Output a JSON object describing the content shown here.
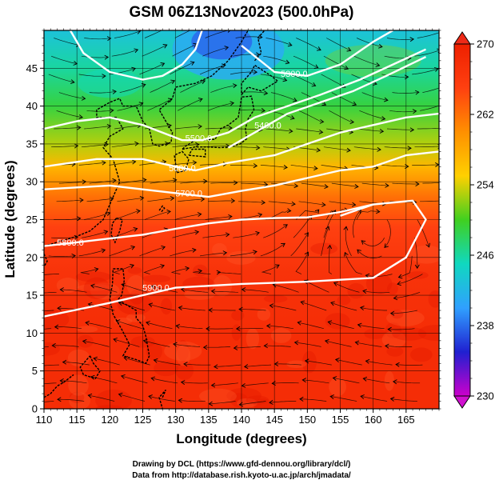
{
  "chart_data": {
    "type": "heatmap",
    "title": "GSM 06Z13Nov2023 (500.0hPa)",
    "xlabel": "Longitude (degrees)",
    "ylabel": "Latitude  (degrees)",
    "xlim": [
      110,
      170
    ],
    "ylim": [
      0,
      50
    ],
    "x_ticks": [
      110,
      115,
      120,
      125,
      130,
      135,
      140,
      145,
      150,
      155,
      160,
      165
    ],
    "y_ticks": [
      0,
      5,
      10,
      15,
      20,
      25,
      30,
      35,
      40,
      45
    ],
    "grid": true,
    "colorbar": {
      "min": 230,
      "max": 270,
      "ticks": [
        230,
        238,
        246,
        254,
        262,
        270
      ],
      "position": "right"
    },
    "colors": {
      "stops": [
        "#cc00cc",
        "#2020d0",
        "#30a0ff",
        "#10d8c0",
        "#40d020",
        "#ffd000",
        "#ff9000",
        "#ff4010",
        "#ee2000"
      ],
      "contour_line": "#ffffff",
      "streamline": "#000000"
    },
    "temperature_bands": [
      {
        "lat": 50,
        "value": 243
      },
      {
        "lat": 45,
        "value": 246
      },
      {
        "lat": 40,
        "value": 249
      },
      {
        "lat": 35,
        "value": 253
      },
      {
        "lat": 32,
        "value": 257
      },
      {
        "lat": 28,
        "value": 262
      },
      {
        "lat": 24,
        "value": 265
      },
      {
        "lat": 18,
        "value": 267
      },
      {
        "lat": 10,
        "value": 268
      },
      {
        "lat": 0,
        "value": 268
      }
    ],
    "height_contours": [
      {
        "label": "5900.0",
        "points": [
          [
            110,
            12.2
          ],
          [
            120,
            14.0
          ],
          [
            130,
            16.0
          ],
          [
            140,
            16.5
          ],
          [
            150,
            16.8
          ],
          [
            160,
            17.3
          ],
          [
            165,
            20.0
          ],
          [
            168,
            25.0
          ],
          [
            166,
            27.5
          ],
          [
            160,
            27.0
          ],
          [
            155,
            25.5
          ]
        ],
        "label_at": [
          127,
          16
        ]
      },
      {
        "label": "5800.0",
        "points": [
          [
            110,
            21.5
          ],
          [
            115,
            22.0
          ],
          [
            120,
            22.5
          ],
          [
            125,
            23.0
          ],
          [
            130,
            23.8
          ],
          [
            135,
            24.5
          ],
          [
            140,
            25.0
          ],
          [
            145,
            25.2
          ],
          [
            150,
            25.3
          ],
          [
            155,
            26.0
          ],
          [
            160,
            27.0
          ]
        ],
        "label_at": [
          114,
          22
        ]
      },
      {
        "label": "5700.0",
        "points": [
          [
            110,
            29.0
          ],
          [
            120,
            29.5
          ],
          [
            125,
            29.0
          ],
          [
            130,
            28.5
          ],
          [
            135,
            28.0
          ],
          [
            140,
            28.8
          ],
          [
            145,
            29.5
          ],
          [
            150,
            30.5
          ],
          [
            155,
            31.5
          ],
          [
            160,
            32.0
          ],
          [
            165,
            33.5
          ],
          [
            170,
            34.0
          ]
        ],
        "label_at": [
          132,
          28.5
        ]
      },
      {
        "label": "5600.0",
        "points": [
          [
            110,
            32.0
          ],
          [
            118,
            33.0
          ],
          [
            125,
            33.0
          ],
          [
            130,
            32.0
          ],
          [
            133,
            31.5
          ],
          [
            138,
            32.5
          ],
          [
            145,
            33.5
          ],
          [
            150,
            35.0
          ],
          [
            155,
            36.5
          ],
          [
            160,
            37.5
          ],
          [
            165,
            38.5
          ],
          [
            170,
            39.0
          ]
        ],
        "label_at": [
          131,
          31.8
        ]
      },
      {
        "label": "5500.0",
        "points": [
          [
            110,
            37.0
          ],
          [
            115,
            38.0
          ],
          [
            120,
            38.5
          ],
          [
            125,
            37.5
          ],
          [
            128,
            36.5
          ],
          [
            131,
            35.5
          ],
          [
            134,
            35.5
          ],
          [
            138,
            36.5
          ],
          [
            142,
            38.5
          ],
          [
            147,
            40.0
          ],
          [
            152,
            41.5
          ],
          [
            158,
            43.5
          ],
          [
            163,
            45.5
          ],
          [
            168,
            47.5
          ]
        ],
        "label_at": [
          133.5,
          35.8
        ]
      },
      {
        "label": "5400.0",
        "points": [
          [
            138,
            34.5
          ],
          [
            142,
            36.5
          ],
          [
            147,
            39.0
          ],
          [
            152,
            40.5
          ],
          [
            157,
            42.0
          ],
          [
            162,
            44.0
          ],
          [
            168,
            46.5
          ]
        ],
        "label_at": [
          144,
          37.5
        ]
      },
      {
        "label": "5300.0",
        "points": [
          [
            140,
            48.0
          ],
          [
            145,
            44.5
          ],
          [
            150,
            44.0
          ],
          [
            155,
            45.5
          ],
          [
            160,
            48.5
          ],
          [
            163,
            50.0
          ]
        ],
        "label_at": [
          148,
          44.3
        ]
      },
      {
        "label": "",
        "points": [
          [
            114,
            50.0
          ],
          [
            116,
            47.0
          ],
          [
            120,
            44.5
          ],
          [
            125,
            43.5
          ],
          [
            128,
            44.0
          ],
          [
            131,
            45.5
          ],
          [
            133,
            47.5
          ],
          [
            134,
            50.0
          ]
        ],
        "label_at": null
      }
    ],
    "credits": [
      "Drawing by DCL (https://www.gfd-dennou.org/library/dcl/)",
      "Data from http://database.rish.kyoto-u.ac.jp/arch/jmadata/"
    ]
  }
}
